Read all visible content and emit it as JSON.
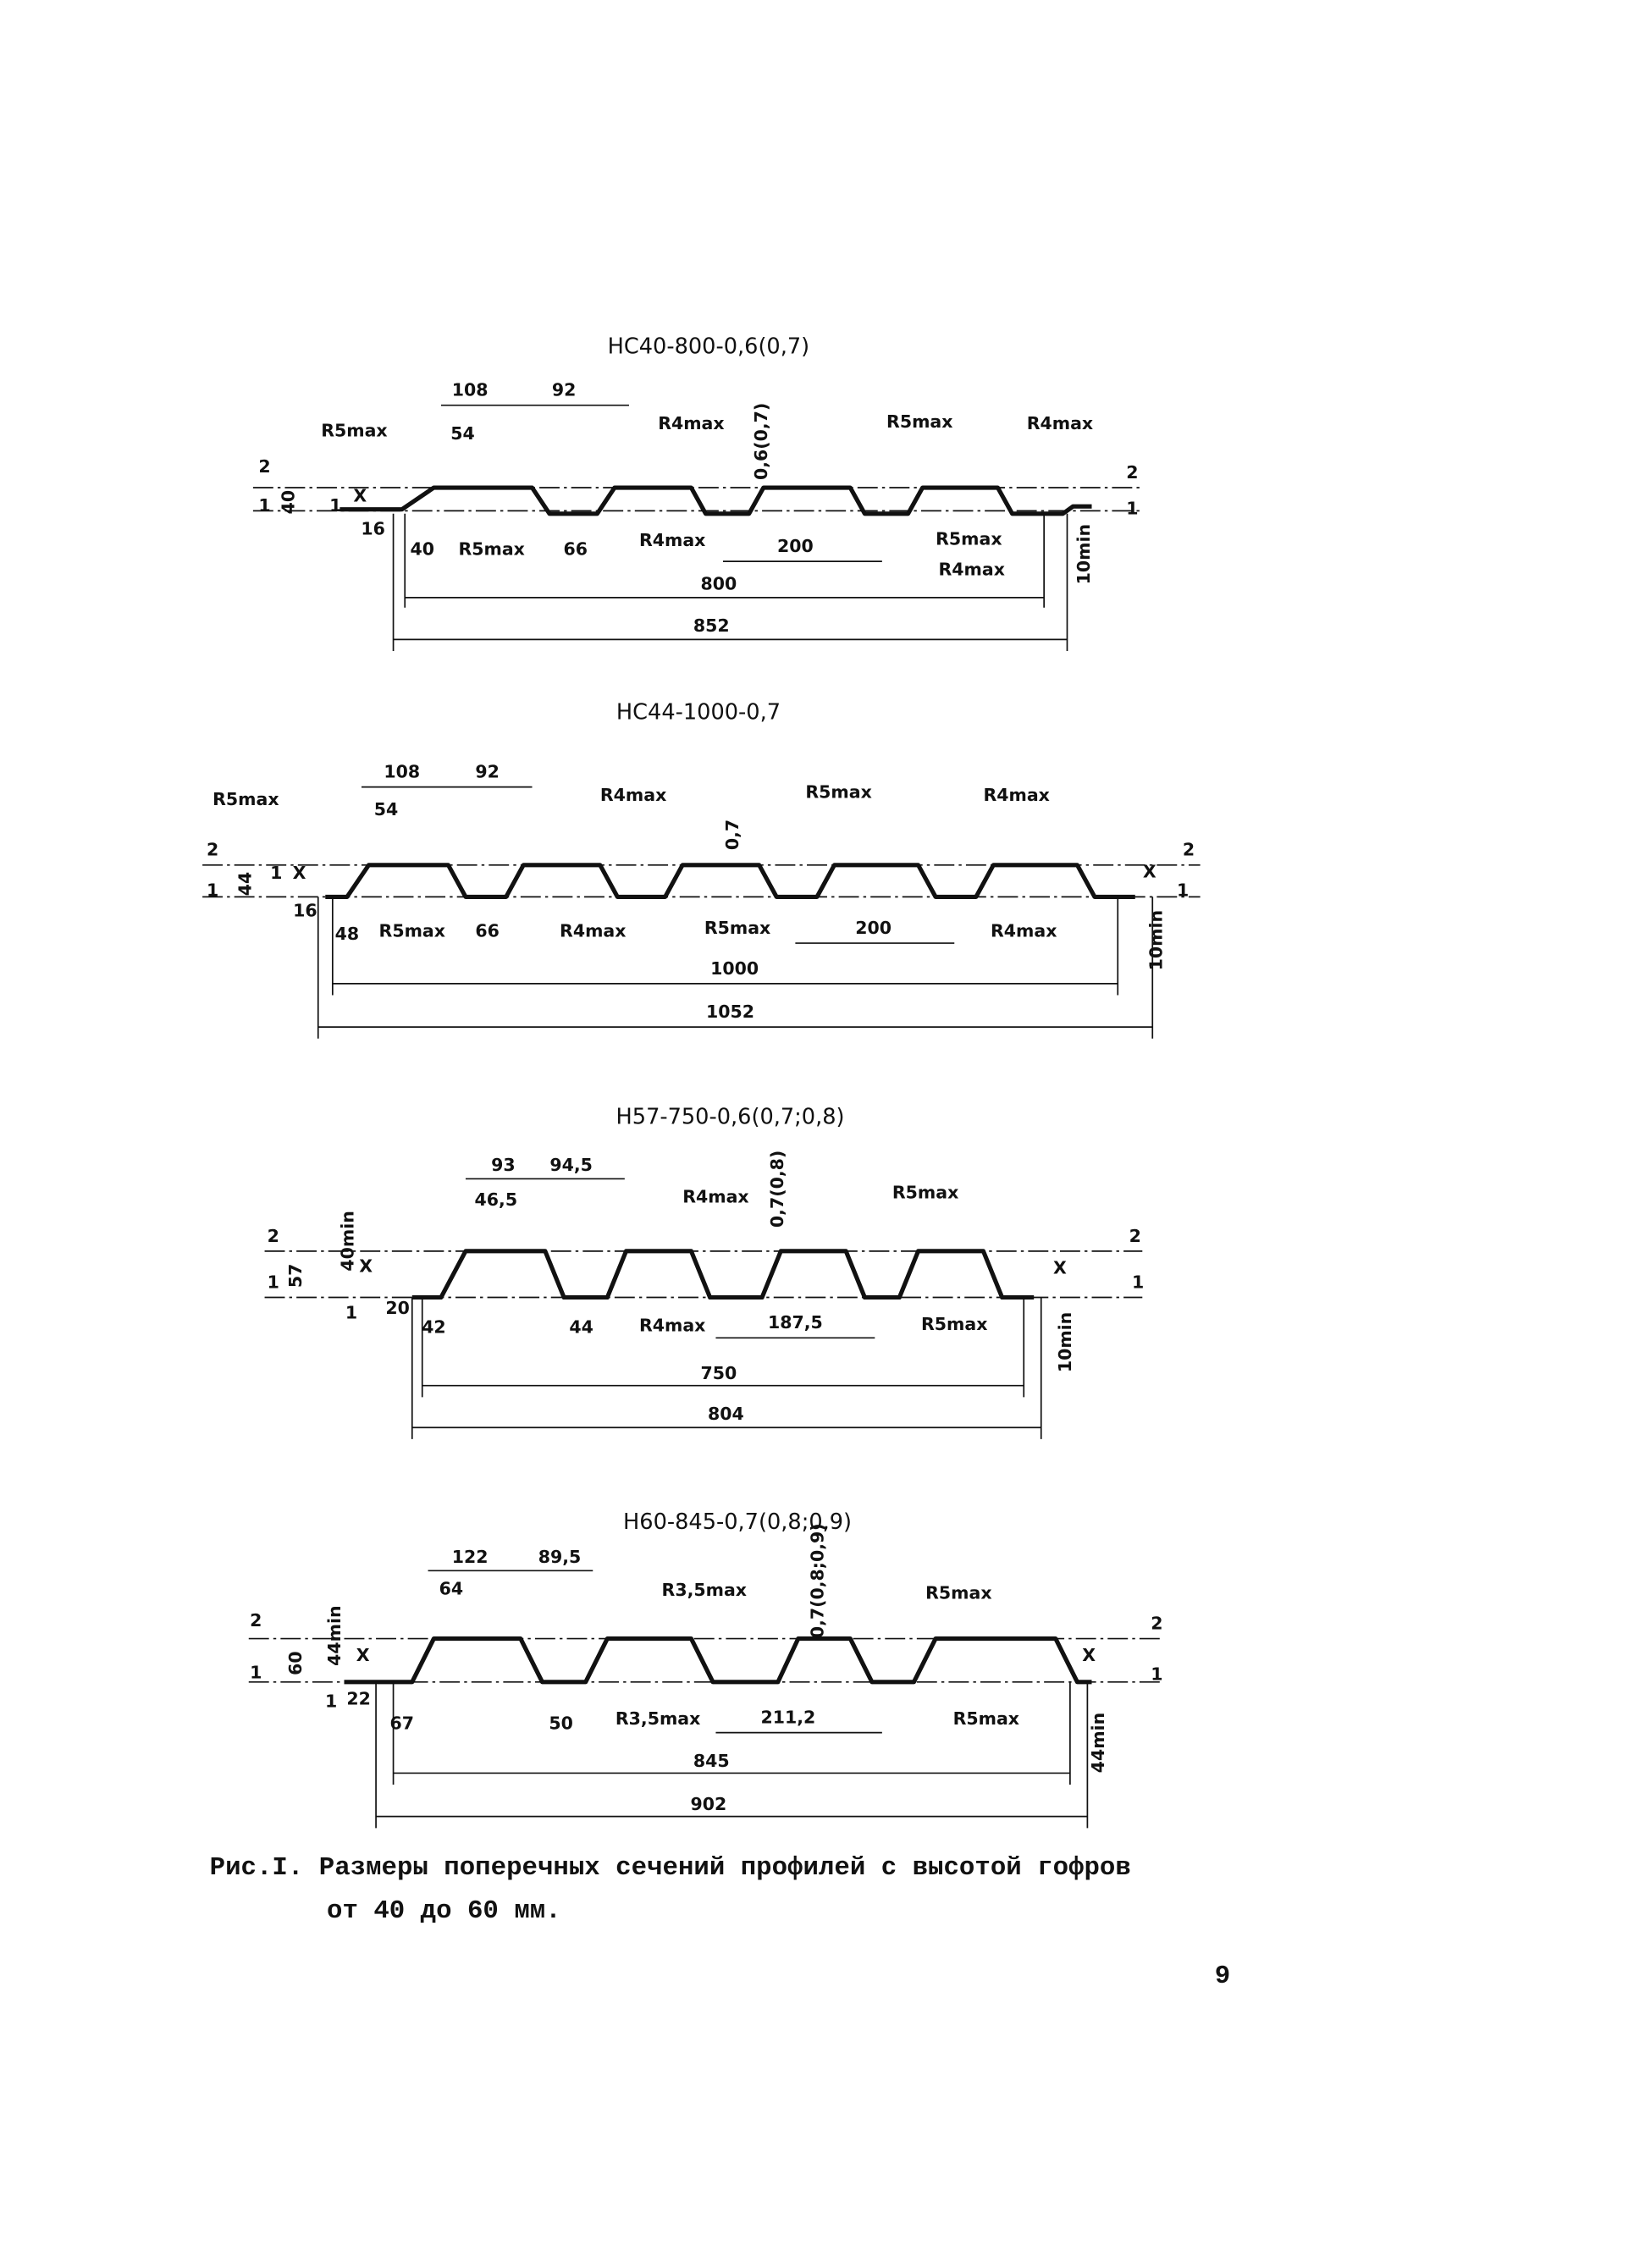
{
  "figures": [
    {
      "title": "НС40-800-0,6(0,7)",
      "labels": [
        "108",
        "92",
        "R5max",
        "54",
        "R4max",
        "0,6(0,7)",
        "R5max",
        "R4max",
        "2",
        "2",
        "40",
        "1",
        "X",
        "1",
        "1",
        "16",
        "40",
        "R5max",
        "66",
        "R4max",
        "200",
        "R5max",
        "R4max",
        "10min",
        "800",
        "852"
      ]
    },
    {
      "title": "НС44-1000-0,7",
      "labels": [
        "108",
        "92",
        "R5max",
        "54",
        "R4max",
        "R5max",
        "R4max",
        "0,7",
        "2",
        "2",
        "1",
        "44",
        "1",
        "X",
        "X",
        "1",
        "16",
        "48",
        "R5max",
        "66",
        "R4max",
        "R5max",
        "200",
        "R4max",
        "10min",
        "1000",
        "1052"
      ]
    },
    {
      "title": "Н57-750-0,6(0,7;0,8)",
      "labels": [
        "93",
        "94,5",
        "46,5",
        "R4max",
        "0,7(0,8)",
        "R5max",
        "2",
        "2",
        "40min",
        "X",
        "X",
        "57",
        "1",
        "1",
        "1",
        "20",
        "42",
        "44",
        "R4max",
        "187,5",
        "R5max",
        "10min",
        "750",
        "804"
      ]
    },
    {
      "title": "Н60-845-0,7(0,8;0,9)",
      "labels": [
        "122",
        "89,5",
        "64",
        "R3,5max",
        "0,7(0,8;0,9)",
        "R5max",
        "2",
        "2",
        "44min",
        "X",
        "X",
        "60",
        "1",
        "1",
        "1",
        "22",
        "67",
        "50",
        "R3,5max",
        "211,2",
        "R5max",
        "44min",
        "845",
        "902"
      ]
    }
  ],
  "caption": {
    "line1": "Рис.I. Размеры поперечных сечений профилей с высотой гофров",
    "line2": "от 40 до 60 мм."
  },
  "page_number": "9"
}
